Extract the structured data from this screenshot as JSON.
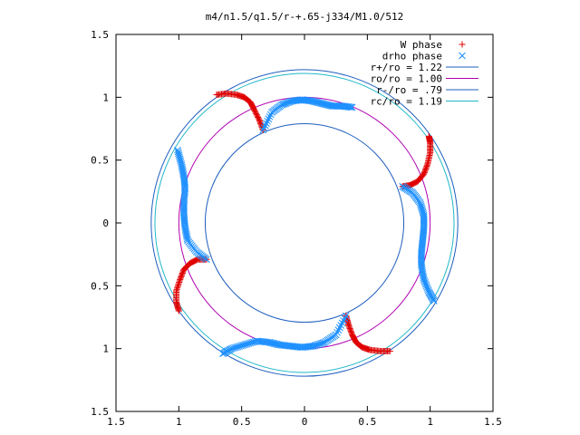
{
  "chart_data": {
    "type": "scatter",
    "title": "m4/n1.5/q1.5/r-+.65-j334/M1.0/512",
    "xlabel": "",
    "ylabel": "",
    "xlim": [
      -1.5,
      1.5
    ],
    "ylim": [
      -1.5,
      1.5
    ],
    "x_ticks": [
      -1.5,
      -1,
      -0.5,
      0,
      0.5,
      1,
      1.5
    ],
    "y_ticks": [
      1.5,
      1,
      0.5,
      0,
      -0.5,
      -1,
      -1.5
    ],
    "x_tick_labels": [
      "1.5",
      "1",
      "0.5",
      "0",
      "0.5",
      "1",
      "1.5"
    ],
    "y_tick_labels": [
      "1.5",
      "1",
      "0.5",
      "0",
      "0.5",
      "1",
      "1.5"
    ],
    "grid": false,
    "legend_position": "top-right",
    "circles": [
      {
        "name": "r+/ro = 1.22",
        "radius": 1.22,
        "color": "#1f5fbf"
      },
      {
        "name": "ro/ro = 1.00",
        "radius": 1.0,
        "color": "#b000b0"
      },
      {
        "name": "r-/ro = .79",
        "radius": 0.79,
        "color": "#1f5fbf"
      },
      {
        "name": "rc/ro = 1.19",
        "radius": 1.19,
        "color": "#20b8c8"
      }
    ],
    "series": [
      {
        "name": "W phase",
        "marker": "+",
        "color": "#e00000",
        "arms": [
          {
            "x": [
              -0.7,
              -0.62,
              -0.54,
              -0.48,
              -0.43,
              -0.4,
              -0.36,
              -0.33
            ],
            "y": [
              1.02,
              1.03,
              1.02,
              1.0,
              0.96,
              0.9,
              0.82,
              0.74
            ]
          },
          {
            "x": [
              0.99,
              1.0,
              1.0,
              0.98,
              0.95,
              0.9,
              0.84,
              0.78
            ],
            "y": [
              0.69,
              0.64,
              0.56,
              0.47,
              0.39,
              0.33,
              0.3,
              0.29
            ]
          },
          {
            "x": [
              -1.0,
              -1.02,
              -1.02,
              -0.99,
              -0.96,
              -0.91,
              -0.85,
              -0.78
            ],
            "y": [
              -0.7,
              -0.63,
              -0.54,
              -0.45,
              -0.37,
              -0.32,
              -0.29,
              -0.29
            ]
          },
          {
            "x": [
              0.68,
              0.6,
              0.52,
              0.46,
              0.41,
              0.38,
              0.35,
              0.33
            ],
            "y": [
              -1.02,
              -1.02,
              -1.01,
              -0.99,
              -0.95,
              -0.89,
              -0.81,
              -0.74
            ]
          }
        ]
      },
      {
        "name": "drho phase",
        "marker": "x",
        "color": "#1e90ff",
        "arms": [
          {
            "x": [
              -0.33,
              -0.26,
              -0.18,
              -0.1,
              -0.02,
              0.06,
              0.14,
              0.22,
              0.3,
              0.38
            ],
            "y": [
              0.74,
              0.88,
              0.94,
              0.97,
              0.98,
              0.97,
              0.95,
              0.93,
              0.93,
              0.92
            ]
          },
          {
            "x": [
              0.78,
              0.86,
              0.92,
              0.95,
              0.95,
              0.94,
              0.93,
              0.93,
              0.95,
              0.99,
              1.03
            ],
            "y": [
              0.29,
              0.24,
              0.16,
              0.06,
              -0.04,
              -0.14,
              -0.24,
              -0.34,
              -0.45,
              -0.55,
              -0.62
            ]
          },
          {
            "x": [
              -0.78,
              -0.86,
              -0.93,
              -0.95,
              -0.96,
              -0.96,
              -0.95,
              -0.96,
              -0.98,
              -1.01
            ],
            "y": [
              -0.29,
              -0.23,
              -0.14,
              -0.04,
              0.06,
              0.16,
              0.27,
              0.37,
              0.47,
              0.58
            ]
          },
          {
            "x": [
              0.33,
              0.25,
              0.16,
              0.07,
              -0.02,
              -0.11,
              -0.2,
              -0.28,
              -0.38,
              -0.48,
              -0.58,
              -0.65
            ],
            "y": [
              -0.74,
              -0.89,
              -0.95,
              -0.98,
              -0.99,
              -0.98,
              -0.97,
              -0.95,
              -0.94,
              -0.97,
              -1.0,
              -1.04
            ]
          }
        ]
      }
    ]
  }
}
